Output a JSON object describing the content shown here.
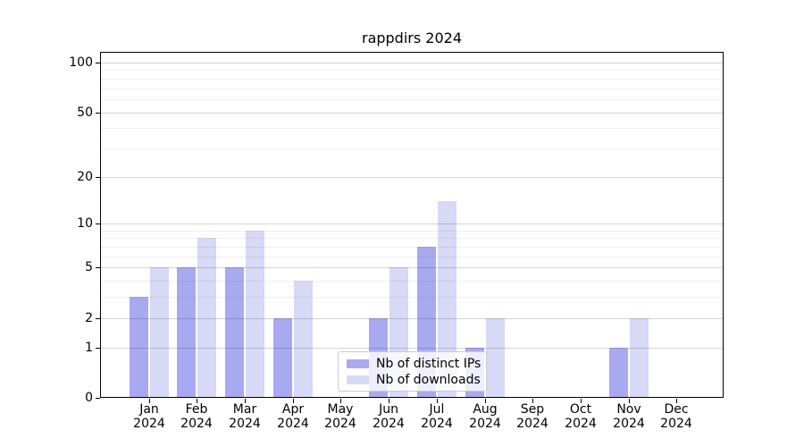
{
  "title": "rappdirs 2024",
  "legend": {
    "items": [
      {
        "label": "Nb of distinct IPs",
        "color": "#a9a9f1"
      },
      {
        "label": "Nb of downloads",
        "color": "#d8d8f7"
      }
    ]
  },
  "chart_data": {
    "type": "bar",
    "title": "rappdirs 2024",
    "categories": [
      "Jan 2024",
      "Feb 2024",
      "Mar 2024",
      "Apr 2024",
      "May 2024",
      "Jun 2024",
      "Jul 2024",
      "Aug 2024",
      "Sep 2024",
      "Oct 2024",
      "Nov 2024",
      "Dec 2024"
    ],
    "series": [
      {
        "name": "Nb of distinct IPs",
        "color": "#a9a9f1",
        "values": [
          3,
          5,
          5,
          2,
          0,
          2,
          7,
          1,
          0,
          0,
          1,
          0
        ]
      },
      {
        "name": "Nb of downloads",
        "color": "#d8d8f7",
        "values": [
          5,
          8,
          9,
          4,
          0,
          5,
          14,
          2,
          0,
          0,
          2,
          0
        ]
      }
    ],
    "xlabel": "",
    "ylabel": "",
    "yscale": "log1p",
    "ylim": [
      0,
      115
    ],
    "yticks": [
      0,
      1,
      2,
      5,
      10,
      20,
      50,
      100
    ],
    "yticks_minor": [
      3,
      4,
      6,
      7,
      8,
      9,
      30,
      40,
      60,
      70,
      80,
      90
    ],
    "grid": true,
    "legend_position": "lower center"
  }
}
